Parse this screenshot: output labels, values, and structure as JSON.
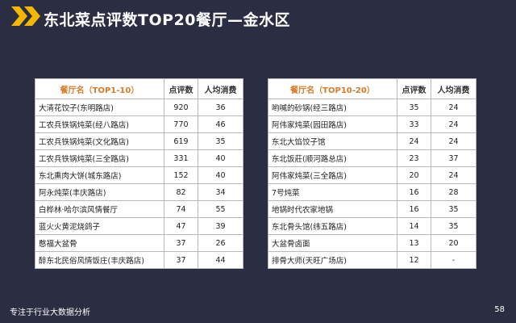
{
  "header": {
    "title": "东北菜点评数TOP20餐厅—金水区"
  },
  "table_left": {
    "headers": [
      "餐厅名（TOP1-10）",
      "点评数",
      "人均消费"
    ],
    "rows": [
      [
        "大清花饺子(东明路店)",
        "920",
        "36"
      ],
      [
        "工农兵铁锅炖菜(经八路店)",
        "770",
        "46"
      ],
      [
        "工农兵铁锅炖菜(文化路店)",
        "619",
        "35"
      ],
      [
        "工农兵铁锅炖菜(三全路店)",
        "331",
        "40"
      ],
      [
        "东北熏肉大饼(城东路店)",
        "152",
        "40"
      ],
      [
        "阿永炖菜(丰庆路店)",
        "82",
        "34"
      ],
      [
        "白桦林·哈尔滨风情餐厅",
        "74",
        "55"
      ],
      [
        "蓝火火黄泥烧鸽子",
        "47",
        "39"
      ],
      [
        "憨福大盆骨",
        "37",
        "26"
      ],
      [
        "醉东北民俗风情饭庄(丰庆路店)",
        "37",
        "44"
      ]
    ]
  },
  "table_right": {
    "headers": [
      "餐厅名（TOP10-20）",
      "点评数",
      "人均消费"
    ],
    "rows": [
      [
        "哟喊的砂锅(经三路店)",
        "35",
        "24"
      ],
      [
        "阿伟家炖菜(园田路店)",
        "33",
        "24"
      ],
      [
        "东北大馅饺子馆",
        "24",
        "24"
      ],
      [
        "东北饭莊(顺河路总店)",
        "23",
        "37"
      ],
      [
        "阿伟家炖菜(三全路店)",
        "20",
        "24"
      ],
      [
        "7号炖菜",
        "16",
        "28"
      ],
      [
        "地锅时代农家地锅",
        "16",
        "35"
      ],
      [
        "东北骨头馆(纬五路店)",
        "14",
        "35"
      ],
      [
        "大盆骨卤面",
        "13",
        "20"
      ],
      [
        "排骨大师(天旺广场店)",
        "12",
        "-"
      ]
    ]
  },
  "footer": {
    "tagline": "专注于行业大数据分析",
    "page_number": "58"
  },
  "colors": {
    "background": "#2b2d42",
    "accent": "#f5b800",
    "header_text": "#d87a28"
  }
}
